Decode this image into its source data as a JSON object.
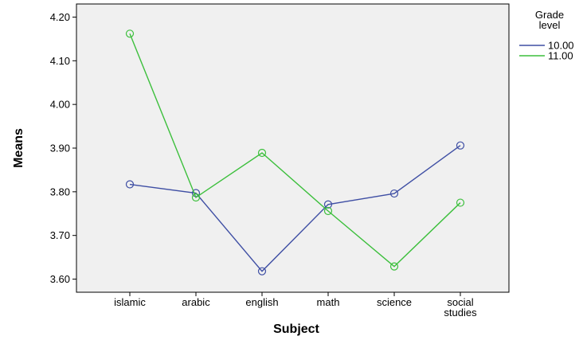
{
  "chart_data": {
    "type": "line",
    "xlabel": "Subject",
    "ylabel": "Means",
    "categories": [
      [
        "islamic"
      ],
      [
        "arabic"
      ],
      [
        "english"
      ],
      [
        "math"
      ],
      [
        "science"
      ],
      [
        "social",
        "studies"
      ]
    ],
    "yticks": [
      "3.60",
      "3.70",
      "3.80",
      "3.90",
      "4.00",
      "4.10",
      "4.20"
    ],
    "ylim": [
      3.57,
      4.23
    ],
    "grid": false,
    "legend": {
      "title": [
        "Grade",
        "level"
      ],
      "placement": "right"
    },
    "series": [
      {
        "name": "10.00",
        "color": "#3f4fa4",
        "values": [
          3.817,
          3.797,
          3.618,
          3.771,
          3.796,
          3.906
        ]
      },
      {
        "name": "11.00",
        "color": "#3cbf3c",
        "values": [
          4.162,
          3.787,
          3.889,
          3.756,
          3.629,
          3.775
        ]
      }
    ],
    "plot_background": "#f0f0f0"
  }
}
